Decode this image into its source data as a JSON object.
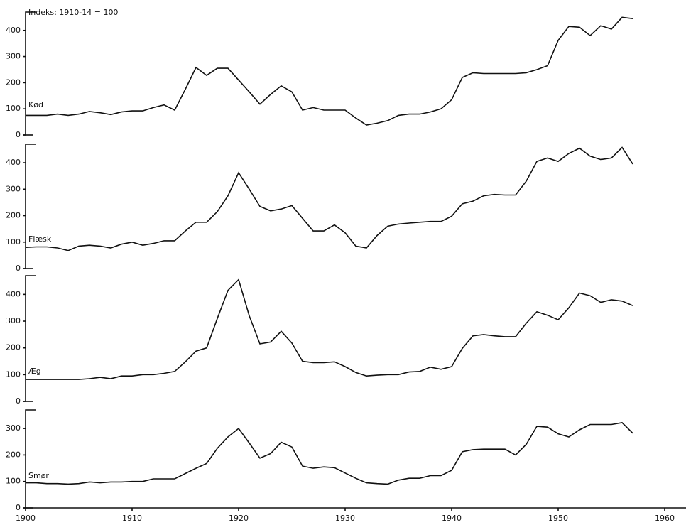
{
  "chart_data": [
    {
      "type": "line",
      "title": "Indeks: 1910-14 = 100",
      "x": [
        1900,
        1901,
        1902,
        1903,
        1904,
        1905,
        1906,
        1907,
        1908,
        1909,
        1910,
        1911,
        1912,
        1913,
        1914,
        1915,
        1916,
        1917,
        1918,
        1919,
        1920,
        1921,
        1922,
        1923,
        1924,
        1925,
        1926,
        1927,
        1928,
        1929,
        1930,
        1931,
        1932,
        1933,
        1934,
        1935,
        1936,
        1937,
        1938,
        1939,
        1940,
        1941,
        1942,
        1943,
        1944,
        1945,
        1946,
        1947,
        1948,
        1949,
        1950,
        1951,
        1952,
        1953,
        1954,
        1955,
        1956,
        1957
      ],
      "series": [
        {
          "name": "Kød",
          "color": "#111111",
          "values": [
            75,
            75,
            75,
            80,
            75,
            80,
            90,
            85,
            78,
            88,
            92,
            92,
            105,
            115,
            95,
            175,
            258,
            228,
            255,
            255,
            210,
            165,
            118,
            155,
            188,
            165,
            95,
            105,
            95,
            95,
            95,
            65,
            38,
            45,
            55,
            75,
            80,
            80,
            88,
            100,
            135,
            220,
            238,
            235,
            235,
            235,
            235,
            238,
            250,
            265,
            362,
            415,
            412,
            380,
            418,
            405,
            450,
            445
          ]
        }
      ],
      "xlim": [
        1900,
        1962
      ],
      "ylim": [
        0,
        470
      ],
      "yticks": [
        0,
        100,
        200,
        300,
        400
      ]
    },
    {
      "type": "line",
      "x": [
        1900,
        1901,
        1902,
        1903,
        1904,
        1905,
        1906,
        1907,
        1908,
        1909,
        1910,
        1911,
        1912,
        1913,
        1914,
        1915,
        1916,
        1917,
        1918,
        1919,
        1920,
        1921,
        1922,
        1923,
        1924,
        1925,
        1926,
        1927,
        1928,
        1929,
        1930,
        1931,
        1932,
        1933,
        1934,
        1935,
        1936,
        1937,
        1938,
        1939,
        1940,
        1941,
        1942,
        1943,
        1944,
        1945,
        1946,
        1947,
        1948,
        1949,
        1950,
        1951,
        1952,
        1953,
        1954,
        1955,
        1956,
        1957
      ],
      "series": [
        {
          "name": "Flæsk",
          "color": "#111111",
          "values": [
            80,
            82,
            82,
            78,
            68,
            85,
            88,
            85,
            78,
            92,
            100,
            88,
            95,
            105,
            105,
            142,
            175,
            175,
            215,
            275,
            362,
            300,
            235,
            218,
            225,
            238,
            190,
            142,
            142,
            165,
            135,
            85,
            78,
            125,
            160,
            168,
            172,
            175,
            178,
            178,
            198,
            245,
            255,
            275,
            280,
            278,
            278,
            330,
            405,
            418,
            405,
            435,
            455,
            425,
            412,
            418,
            458,
            395
          ]
        }
      ],
      "xlim": [
        1900,
        1962
      ],
      "ylim": [
        0,
        470
      ],
      "yticks": [
        0,
        100,
        200,
        300,
        400
      ]
    },
    {
      "type": "line",
      "x": [
        1900,
        1901,
        1902,
        1903,
        1904,
        1905,
        1906,
        1907,
        1908,
        1909,
        1910,
        1911,
        1912,
        1913,
        1914,
        1915,
        1916,
        1917,
        1918,
        1919,
        1920,
        1921,
        1922,
        1923,
        1924,
        1925,
        1926,
        1927,
        1928,
        1929,
        1930,
        1931,
        1932,
        1933,
        1934,
        1935,
        1936,
        1937,
        1938,
        1939,
        1940,
        1941,
        1942,
        1943,
        1944,
        1945,
        1946,
        1947,
        1948,
        1949,
        1950,
        1951,
        1952,
        1953,
        1954,
        1955,
        1956,
        1957
      ],
      "series": [
        {
          "name": "Æg",
          "color": "#111111",
          "values": [
            82,
            82,
            82,
            82,
            82,
            82,
            85,
            90,
            85,
            95,
            95,
            100,
            100,
            105,
            112,
            148,
            188,
            200,
            310,
            415,
            455,
            320,
            215,
            222,
            262,
            218,
            150,
            145,
            145,
            148,
            130,
            108,
            95,
            98,
            100,
            100,
            110,
            112,
            128,
            120,
            130,
            198,
            245,
            250,
            245,
            242,
            242,
            292,
            335,
            322,
            305,
            350,
            405,
            395,
            370,
            380,
            375,
            358
          ]
        }
      ],
      "xlim": [
        1900,
        1962
      ],
      "ylim": [
        0,
        470
      ],
      "yticks": [
        0,
        100,
        200,
        300,
        400
      ]
    },
    {
      "type": "line",
      "x": [
        1900,
        1901,
        1902,
        1903,
        1904,
        1905,
        1906,
        1907,
        1908,
        1909,
        1910,
        1911,
        1912,
        1913,
        1914,
        1915,
        1916,
        1917,
        1918,
        1919,
        1920,
        1921,
        1922,
        1923,
        1924,
        1925,
        1926,
        1927,
        1928,
        1929,
        1930,
        1931,
        1932,
        1933,
        1934,
        1935,
        1936,
        1937,
        1938,
        1939,
        1940,
        1941,
        1942,
        1943,
        1944,
        1945,
        1946,
        1947,
        1948,
        1949,
        1950,
        1951,
        1952,
        1953,
        1954,
        1955,
        1956,
        1957
      ],
      "series": [
        {
          "name": "Smør",
          "color": "#111111",
          "values": [
            95,
            95,
            92,
            92,
            90,
            92,
            98,
            95,
            98,
            98,
            100,
            100,
            110,
            110,
            110,
            130,
            150,
            168,
            225,
            268,
            300,
            245,
            188,
            205,
            248,
            230,
            158,
            150,
            155,
            152,
            132,
            112,
            95,
            92,
            90,
            105,
            112,
            112,
            122,
            122,
            142,
            212,
            220,
            222,
            222,
            222,
            200,
            240,
            308,
            305,
            280,
            268,
            295,
            315,
            315,
            315,
            322,
            282
          ]
        }
      ],
      "xlim": [
        1900,
        1962
      ],
      "ylim": [
        0,
        370
      ],
      "yticks": [
        0,
        100,
        200,
        300
      ],
      "xticks": [
        1900,
        1910,
        1920,
        1930,
        1940,
        1950,
        1960
      ]
    }
  ]
}
